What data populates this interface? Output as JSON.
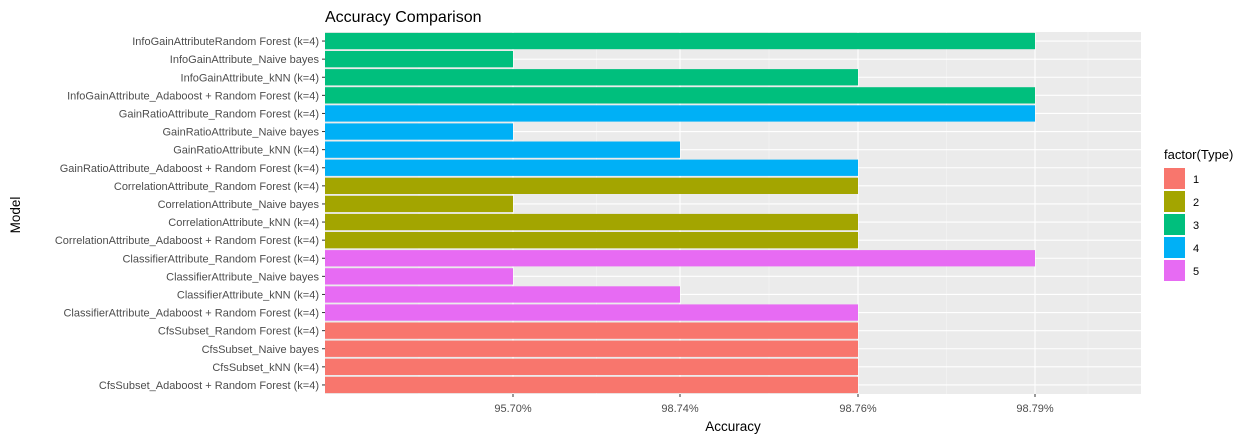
{
  "chart_data": {
    "type": "bar",
    "orientation": "horizontal",
    "title": "Accuracy Comparison",
    "xlabel": "Accuracy",
    "ylabel": "Model",
    "x_axis_type": "categorical",
    "x_categories": [
      "95.70%",
      "98.74%",
      "98.76%",
      "98.79%"
    ],
    "grid": true,
    "legend": {
      "title": "factor(Type)",
      "position": "right",
      "entries": [
        {
          "label": "1",
          "color": "#F8766D"
        },
        {
          "label": "2",
          "color": "#A3A500"
        },
        {
          "label": "3",
          "color": "#00BF7D"
        },
        {
          "label": "4",
          "color": "#00B0F6"
        },
        {
          "label": "5",
          "color": "#E76BF3"
        }
      ]
    },
    "bars": [
      {
        "model": "InfoGainAttributeRandom Forest (k=4)",
        "accuracy": "98.79%",
        "type": "3"
      },
      {
        "model": "InfoGainAttribute_Naive bayes",
        "accuracy": "95.70%",
        "type": "3"
      },
      {
        "model": "InfoGainAttribute_kNN (k=4)",
        "accuracy": "98.76%",
        "type": "3"
      },
      {
        "model": "InfoGainAttribute_Adaboost + Random Forest (k=4)",
        "accuracy": "98.79%",
        "type": "3"
      },
      {
        "model": "GainRatioAttribute_Random Forest (k=4)",
        "accuracy": "98.79%",
        "type": "4"
      },
      {
        "model": "GainRatioAttribute_Naive bayes",
        "accuracy": "95.70%",
        "type": "4"
      },
      {
        "model": "GainRatioAttribute_kNN (k=4)",
        "accuracy": "98.74%",
        "type": "4"
      },
      {
        "model": "GainRatioAttribute_Adaboost + Random Forest (k=4)",
        "accuracy": "98.76%",
        "type": "4"
      },
      {
        "model": "CorrelationAttribute_Random Forest (k=4)",
        "accuracy": "98.76%",
        "type": "2"
      },
      {
        "model": "CorrelationAttribute_Naive bayes",
        "accuracy": "95.70%",
        "type": "2"
      },
      {
        "model": "CorrelationAttribute_kNN (k=4)",
        "accuracy": "98.76%",
        "type": "2"
      },
      {
        "model": "CorrelationAttribute_Adaboost + Random Forest (k=4)",
        "accuracy": "98.76%",
        "type": "2"
      },
      {
        "model": "ClassifierAttribute_Random Forest (k=4)",
        "accuracy": "98.79%",
        "type": "5"
      },
      {
        "model": "ClassifierAttribute_Naive bayes",
        "accuracy": "95.70%",
        "type": "5"
      },
      {
        "model": "ClassifierAttribute_kNN (k=4)",
        "accuracy": "98.74%",
        "type": "5"
      },
      {
        "model": "ClassifierAttribute_Adaboost + Random Forest (k=4)",
        "accuracy": "98.76%",
        "type": "5"
      },
      {
        "model": "CfsSubset_Random Forest (k=4)",
        "accuracy": "98.76%",
        "type": "1"
      },
      {
        "model": "CfsSubset_Naive bayes",
        "accuracy": "98.76%",
        "type": "1"
      },
      {
        "model": "CfsSubset_kNN (k=4)",
        "accuracy": "98.76%",
        "type": "1"
      },
      {
        "model": "CfsSubset_Adaboost + Random Forest (k=4)",
        "accuracy": "98.76%",
        "type": "1"
      }
    ]
  }
}
